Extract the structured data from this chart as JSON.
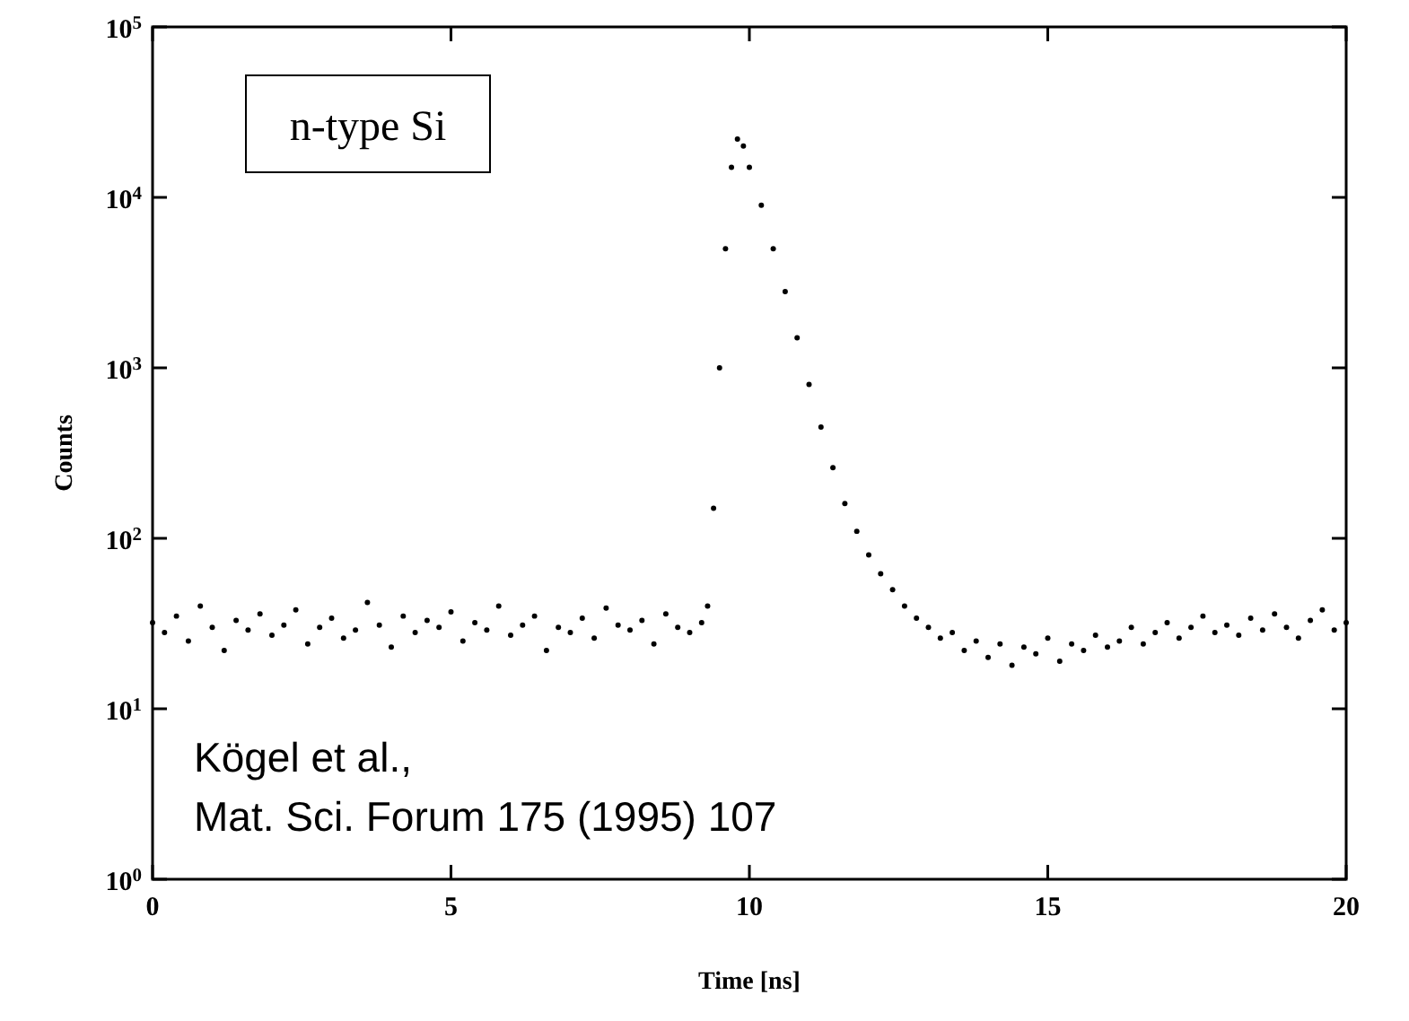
{
  "chart_data": {
    "type": "scatter",
    "xlabel": "Time [ns]",
    "ylabel": "Counts",
    "log": "y",
    "marker": "circle",
    "grid": false,
    "xlim": [
      0,
      20
    ],
    "xticks": [
      0,
      5,
      10,
      15,
      20
    ],
    "ylim": [
      1,
      100000
    ],
    "yticks": [
      {
        "value": 1,
        "label": "10$^{0}$"
      },
      {
        "value": 10,
        "label": "10$^{1}$"
      },
      {
        "value": 100,
        "label": "10$^{2}$"
      },
      {
        "value": 1000,
        "label": "10$^{3}$"
      },
      {
        "value": 10000,
        "label": "10$^{4}$"
      },
      {
        "value": 100000,
        "label": "10$^{5}$"
      }
    ],
    "annotations": [
      "n-type Si",
      "Kögel et al.,\nMat. Sci. Forum 175 (1995) 107"
    ],
    "series": [
      {
        "color": "#000000",
        "x": [
          0,
          0.2,
          0.4,
          0.6,
          0.8,
          1,
          1.2,
          1.4,
          1.6,
          1.8,
          2,
          2.2,
          2.4,
          2.6,
          2.8,
          3,
          3.2,
          3.4,
          3.6,
          3.8,
          4,
          4.2,
          4.4,
          4.6,
          4.8,
          5,
          5.2,
          5.4,
          5.6,
          5.8,
          6,
          6.2,
          6.4,
          6.6,
          6.8,
          7,
          7.2,
          7.4,
          7.6,
          7.8,
          8,
          8.2,
          8.4,
          8.6,
          8.8,
          9,
          9.2,
          9.3,
          9.4,
          9.5,
          9.6,
          9.7,
          9.8,
          9.9,
          10,
          10.2,
          10.4,
          10.6,
          10.8,
          11,
          11.2,
          11.4,
          11.6,
          11.8,
          12,
          12.2,
          12.4,
          12.6,
          12.8,
          13,
          13.2,
          13.4,
          13.6,
          13.8,
          14,
          14.2,
          14.4,
          14.6,
          14.8,
          15,
          15.2,
          15.4,
          15.6,
          15.8,
          16,
          16.2,
          16.4,
          16.6,
          16.8,
          17,
          17.2,
          17.4,
          17.6,
          17.8,
          18,
          18.2,
          18.4,
          18.6,
          18.8,
          19,
          19.2,
          19.4,
          19.6,
          19.8,
          20
        ],
        "values": [
          32,
          28,
          35,
          25,
          40,
          30,
          22,
          33,
          29,
          36,
          27,
          31,
          38,
          24,
          30,
          34,
          26,
          29,
          42,
          31,
          23,
          35,
          28,
          33,
          30,
          37,
          25,
          32,
          29,
          40,
          27,
          31,
          35,
          22,
          30,
          28,
          34,
          26,
          39,
          31,
          29,
          33,
          24,
          36,
          30,
          28,
          32,
          40,
          150,
          1000,
          5000,
          15000,
          22000,
          20000,
          15000,
          9000,
          5000,
          2800,
          1500,
          800,
          450,
          260,
          160,
          110,
          80,
          62,
          50,
          40,
          34,
          30,
          26,
          28,
          22,
          25,
          20,
          24,
          18,
          23,
          21,
          26,
          19,
          24,
          22,
          27,
          23,
          25,
          30,
          24,
          28,
          32,
          26,
          30,
          35,
          28,
          31,
          27,
          34,
          29,
          36,
          30,
          26,
          33,
          38,
          29,
          32
        ]
      }
    ]
  }
}
